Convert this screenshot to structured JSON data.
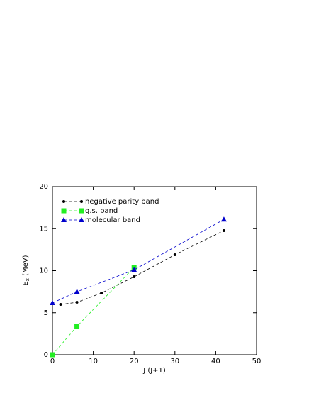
{
  "chart_data": {
    "type": "line",
    "xlabel": "J (J+1)",
    "ylabel": "E",
    "ylabel_sub": "x",
    "ylabel_rest": " (MeV)",
    "xlim": [
      0,
      50
    ],
    "xticks": [
      0,
      10,
      20,
      30,
      40,
      50
    ],
    "ylim": [
      0,
      20
    ],
    "yticks": [
      0,
      5,
      10,
      15,
      20
    ],
    "legend": "top-left",
    "series": [
      {
        "name": "negative parity band",
        "color": "#000000",
        "marker": "circle",
        "x": [
          2,
          6,
          12,
          20,
          30,
          42
        ],
        "values": [
          5.99,
          6.24,
          7.34,
          9.28,
          11.9,
          14.77
        ]
      },
      {
        "name": "g.s. band",
        "color": "#22ee22",
        "marker": "square",
        "x": [
          0,
          6,
          20
        ],
        "values": [
          0,
          3.38,
          10.38
        ]
      },
      {
        "name": "molecular band",
        "color": "#0000cc",
        "marker": "triangle",
        "x": [
          0,
          6,
          20,
          42
        ],
        "values": [
          6.16,
          7.5,
          10.1,
          16.1
        ]
      }
    ]
  }
}
